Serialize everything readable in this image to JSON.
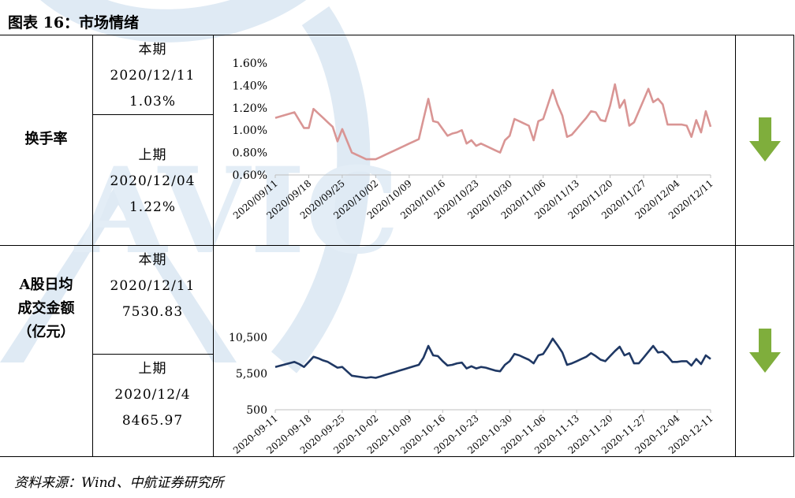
{
  "figure_title": "图表 16：市场情绪",
  "source": "资料来源：Wind、中航证券研究所",
  "watermark": "AVIC",
  "rows": [
    {
      "label_lines": [
        "换手率"
      ],
      "current": {
        "label": "本期",
        "date": "2020/12/11",
        "value": "1.03%"
      },
      "previous": {
        "label": "上期",
        "date": "2020/12/04",
        "value": "1.22%"
      },
      "trend": "down",
      "arrow_color": "#7fae3c"
    },
    {
      "label_lines": [
        "A股日均",
        "成交金额",
        "（亿元）"
      ],
      "current": {
        "label": "本期",
        "date": "2020/12/11",
        "value": "7530.83"
      },
      "previous": {
        "label": "上期",
        "date": "2020/12/4",
        "value": "8465.97"
      },
      "trend": "down",
      "arrow_color": "#7fae3c"
    }
  ],
  "chart_data": [
    {
      "type": "line",
      "color": "#d99594",
      "x_ticks": [
        "2020/09/11",
        "2020/09/18",
        "2020/09/25",
        "2020/10/02",
        "2020/10/09",
        "2020/10/16",
        "2020/10/23",
        "2020/10/30",
        "2020/11/06",
        "2020/11/13",
        "2020/11/20",
        "2020/11/27",
        "2020/12/04",
        "2020/12/11"
      ],
      "y_ticks": [
        "0.60%",
        "0.80%",
        "1.00%",
        "1.20%",
        "1.40%",
        "1.60%"
      ],
      "ylim": [
        0.6,
        1.6
      ],
      "xlim": [
        0,
        91
      ],
      "x": [
        0,
        4,
        5,
        6,
        7,
        8,
        9,
        10,
        11,
        12,
        13,
        14,
        16,
        19,
        20,
        21,
        22,
        23,
        24,
        25,
        26,
        27,
        28,
        29,
        30,
        31,
        32,
        33,
        34,
        35,
        36,
        37,
        38,
        39,
        40,
        41,
        42,
        43,
        44,
        45,
        46,
        47,
        48,
        49,
        50,
        51,
        52,
        53,
        54,
        55,
        56,
        57,
        58,
        59,
        60,
        61,
        62,
        63,
        64,
        65,
        66,
        67,
        68,
        69,
        70,
        71,
        72,
        73,
        74,
        75,
        76,
        77,
        78,
        79,
        80,
        81,
        82,
        83,
        84,
        85,
        86,
        87,
        88,
        89,
        90,
        91
      ],
      "y": [
        1.11,
        1.16,
        1.09,
        1.02,
        1.02,
        1.19,
        1.15,
        1.11,
        1.07,
        1.03,
        0.9,
        1.01,
        0.8,
        0.74,
        0.74,
        0.74,
        0.76,
        0.78,
        0.8,
        0.82,
        0.84,
        0.86,
        0.88,
        0.9,
        0.92,
        1.1,
        1.28,
        1.08,
        1.07,
        1.01,
        0.95,
        0.97,
        0.98,
        1.0,
        0.88,
        0.91,
        0.86,
        0.88,
        0.86,
        0.84,
        0.82,
        0.8,
        0.91,
        0.95,
        1.1,
        1.08,
        1.06,
        1.04,
        0.91,
        1.08,
        1.1,
        1.23,
        1.36,
        1.23,
        1.13,
        0.94,
        0.96,
        1.01,
        1.06,
        1.11,
        1.17,
        1.16,
        1.09,
        1.08,
        1.22,
        1.41,
        1.2,
        1.27,
        1.04,
        1.07,
        1.17,
        1.27,
        1.37,
        1.25,
        1.28,
        1.23,
        1.05,
        1.05,
        1.05,
        1.05,
        1.04,
        0.94,
        1.09,
        0.98,
        1.17,
        1.03
      ]
    },
    {
      "type": "line",
      "color": "#1f3864",
      "x_ticks": [
        "2020-09-11",
        "2020-09-18",
        "2020-09-25",
        "2020-10-02",
        "2020-10-09",
        "2020-10-16",
        "2020-10-23",
        "2020-10-30",
        "2020-11-06",
        "2020-11-13",
        "2020-11-20",
        "2020-11-27",
        "2020-12-04",
        "2020-12-11"
      ],
      "y_ticks": [
        "500",
        "5,500",
        "10,500"
      ],
      "ylim": [
        500,
        10500
      ],
      "xlim": [
        0,
        91
      ],
      "x": [
        0,
        4,
        5,
        6,
        7,
        8,
        9,
        10,
        11,
        12,
        13,
        14,
        16,
        19,
        20,
        21,
        22,
        23,
        24,
        25,
        26,
        27,
        28,
        29,
        30,
        31,
        32,
        33,
        34,
        35,
        36,
        37,
        38,
        39,
        40,
        41,
        42,
        43,
        44,
        45,
        46,
        47,
        48,
        49,
        50,
        51,
        52,
        53,
        54,
        55,
        56,
        57,
        58,
        59,
        60,
        61,
        62,
        63,
        64,
        65,
        66,
        67,
        68,
        69,
        70,
        71,
        72,
        73,
        74,
        75,
        76,
        77,
        78,
        79,
        80,
        81,
        82,
        83,
        84,
        85,
        86,
        87,
        88,
        89,
        90,
        91
      ],
      "y": [
        6400,
        7100,
        6800,
        6400,
        7100,
        7800,
        7600,
        7300,
        7100,
        6700,
        6300,
        6400,
        5200,
        4900,
        5000,
        4900,
        5100,
        5300,
        5500,
        5700,
        5900,
        6100,
        6300,
        6500,
        6700,
        7700,
        9300,
        8000,
        7900,
        7200,
        6600,
        6700,
        6900,
        7000,
        6200,
        6500,
        6200,
        6400,
        6300,
        6100,
        5900,
        5800,
        6700,
        7200,
        8200,
        8000,
        7700,
        7400,
        6900,
        8000,
        8200,
        9200,
        10300,
        9400,
        8400,
        6700,
        6900,
        7200,
        7500,
        7800,
        8300,
        7900,
        7400,
        7200,
        7900,
        8600,
        9200,
        8000,
        8300,
        6900,
        6900,
        7700,
        8500,
        9300,
        8400,
        8500,
        7900,
        7100,
        7100,
        7200,
        7200,
        6600,
        7500,
        6800,
        8000,
        7500
      ]
    }
  ]
}
